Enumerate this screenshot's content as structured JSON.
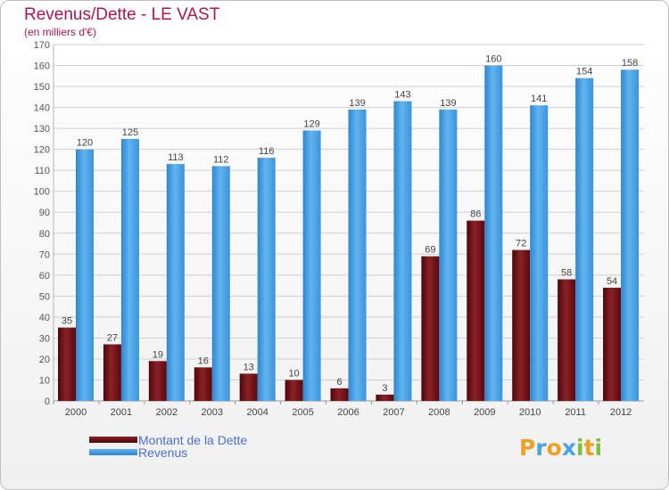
{
  "chart_data": {
    "type": "bar",
    "title": "Revenus/Dette - LE VAST",
    "subtitle": "(en milliers d'€)",
    "categories": [
      "2000",
      "2001",
      "2002",
      "2003",
      "2004",
      "2005",
      "2006",
      "2007",
      "2008",
      "2009",
      "2010",
      "2011",
      "2012"
    ],
    "series": [
      {
        "name": "Montant de la Dette",
        "color": "#6b0f14",
        "values": [
          35,
          27,
          19,
          16,
          13,
          10,
          6,
          3,
          69,
          86,
          72,
          58,
          54
        ]
      },
      {
        "name": "Revenus",
        "color": "#4aa3e6",
        "values": [
          120,
          125,
          113,
          112,
          116,
          129,
          139,
          143,
          139,
          160,
          141,
          154,
          158
        ]
      }
    ],
    "ylim": [
      0,
      170
    ],
    "yticks": [
      0,
      10,
      20,
      30,
      40,
      50,
      60,
      70,
      80,
      90,
      100,
      110,
      120,
      130,
      140,
      150,
      160,
      170
    ],
    "grid": true,
    "legend": "bottom-left"
  },
  "logo": {
    "text": "Proxiti",
    "letters": [
      {
        "char": "P",
        "color": "#f0a020"
      },
      {
        "char": "r",
        "color": "#4aa3e6"
      },
      {
        "char": "o",
        "color": "#f0a020"
      },
      {
        "char": "x",
        "color": "#4aa3e6"
      },
      {
        "char": "i",
        "color": "#7cc043"
      },
      {
        "char": "t",
        "color": "#f0a020"
      },
      {
        "char": "i",
        "color": "#7cc043"
      }
    ]
  }
}
